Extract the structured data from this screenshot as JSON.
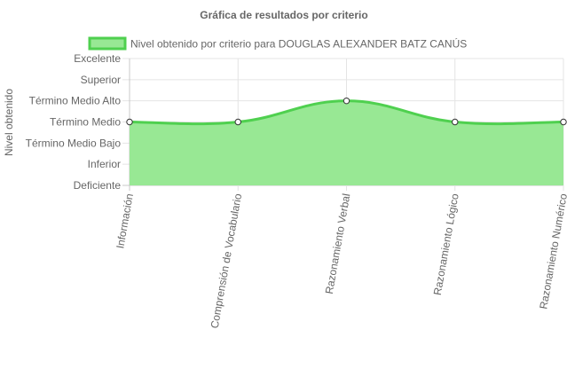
{
  "chart_data": {
    "type": "area",
    "title": "Gráfica de resultados por criterio",
    "ylabel": "Nivel obtenido",
    "xlabel": "",
    "legend": "top",
    "grid": true,
    "categories": [
      "Información",
      "Comprensión de Vocabulario",
      "Razonamiento Verbal",
      "Razonamiento Lógico",
      "Razonamiento Numérico"
    ],
    "y_levels": [
      "Deficiente",
      "Inferior",
      "Término Medio Bajo",
      "Término Medio",
      "Término Medio Alto",
      "Superior",
      "Excelente"
    ],
    "ylim": [
      0,
      6
    ],
    "series": [
      {
        "name": "Nivel obtenido por criterio para DOUGLAS ALEXANDER BATZ CANÚS",
        "values": [
          3,
          3,
          4,
          3,
          3
        ],
        "line_color": "#4fd04f",
        "fill_color": "#98e894",
        "point_fill": "#ffffff",
        "point_stroke": "#333333"
      }
    ]
  }
}
